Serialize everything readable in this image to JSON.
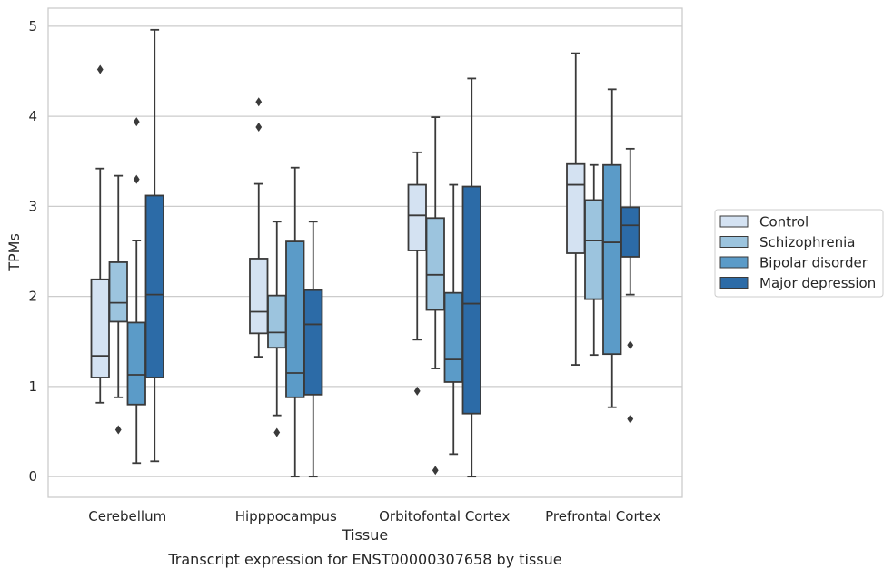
{
  "chart_data": {
    "type": "box",
    "caption": "Transcript expression for ENST00000307658 by tissue",
    "xlabel": "Tissue",
    "ylabel": "TPMs",
    "ylim": [
      -0.23,
      5.2
    ],
    "yticks": [
      0,
      1,
      2,
      3,
      4,
      5
    ],
    "grid": "horizontal",
    "legend_position": "right",
    "categories": [
      "Cerebellum",
      "Hipppocampus",
      "Orbitofontal Cortex",
      "Prefrontal Cortex"
    ],
    "series": [
      {
        "name": "Control",
        "color": "#d4e2f2",
        "boxes": [
          {
            "whisker_low": 0.82,
            "q1": 1.1,
            "median": 1.34,
            "q3": 2.19,
            "whisker_high": 3.42,
            "outliers": [
              4.52
            ]
          },
          {
            "whisker_low": 1.33,
            "q1": 1.59,
            "median": 1.83,
            "q3": 2.42,
            "whisker_high": 3.25,
            "outliers": [
              3.88,
              4.16
            ]
          },
          {
            "whisker_low": 1.52,
            "q1": 2.51,
            "median": 2.9,
            "q3": 3.24,
            "whisker_high": 3.6,
            "outliers": [
              0.95
            ]
          },
          {
            "whisker_low": 1.24,
            "q1": 2.48,
            "median": 3.24,
            "q3": 3.47,
            "whisker_high": 4.7,
            "outliers": []
          }
        ]
      },
      {
        "name": "Schizophrenia",
        "color": "#9cc4de",
        "boxes": [
          {
            "whisker_low": 0.88,
            "q1": 1.72,
            "median": 1.93,
            "q3": 2.38,
            "whisker_high": 3.34,
            "outliers": [
              0.52
            ]
          },
          {
            "whisker_low": 0.68,
            "q1": 1.43,
            "median": 1.6,
            "q3": 2.01,
            "whisker_high": 2.83,
            "outliers": [
              0.49
            ]
          },
          {
            "whisker_low": 1.2,
            "q1": 1.85,
            "median": 2.24,
            "q3": 2.87,
            "whisker_high": 3.99,
            "outliers": [
              0.07
            ]
          },
          {
            "whisker_low": 1.35,
            "q1": 1.97,
            "median": 2.62,
            "q3": 3.07,
            "whisker_high": 3.46,
            "outliers": []
          }
        ]
      },
      {
        "name": "Bipolar disorder",
        "color": "#5b9bc8",
        "boxes": [
          {
            "whisker_low": 0.15,
            "q1": 0.8,
            "median": 1.13,
            "q3": 1.71,
            "whisker_high": 2.62,
            "outliers": [
              3.3,
              3.94
            ]
          },
          {
            "whisker_low": 0.0,
            "q1": 0.88,
            "median": 1.15,
            "q3": 2.61,
            "whisker_high": 3.43,
            "outliers": []
          },
          {
            "whisker_low": 0.25,
            "q1": 1.05,
            "median": 1.3,
            "q3": 2.04,
            "whisker_high": 3.24,
            "outliers": []
          },
          {
            "whisker_low": 0.77,
            "q1": 1.36,
            "median": 2.6,
            "q3": 3.46,
            "whisker_high": 4.3,
            "outliers": []
          }
        ]
      },
      {
        "name": "Major depression",
        "color": "#2c6ba7",
        "boxes": [
          {
            "whisker_low": 0.17,
            "q1": 1.1,
            "median": 2.02,
            "q3": 3.12,
            "whisker_high": 4.96,
            "outliers": []
          },
          {
            "whisker_low": 0.0,
            "q1": 0.91,
            "median": 1.69,
            "q3": 2.07,
            "whisker_high": 2.83,
            "outliers": []
          },
          {
            "whisker_low": 0.0,
            "q1": 0.7,
            "median": 1.92,
            "q3": 3.22,
            "whisker_high": 4.42,
            "outliers": []
          },
          {
            "whisker_low": 2.02,
            "q1": 2.44,
            "median": 2.79,
            "q3": 2.99,
            "whisker_high": 3.64,
            "outliers": [
              0.64,
              1.46
            ]
          }
        ]
      }
    ]
  }
}
